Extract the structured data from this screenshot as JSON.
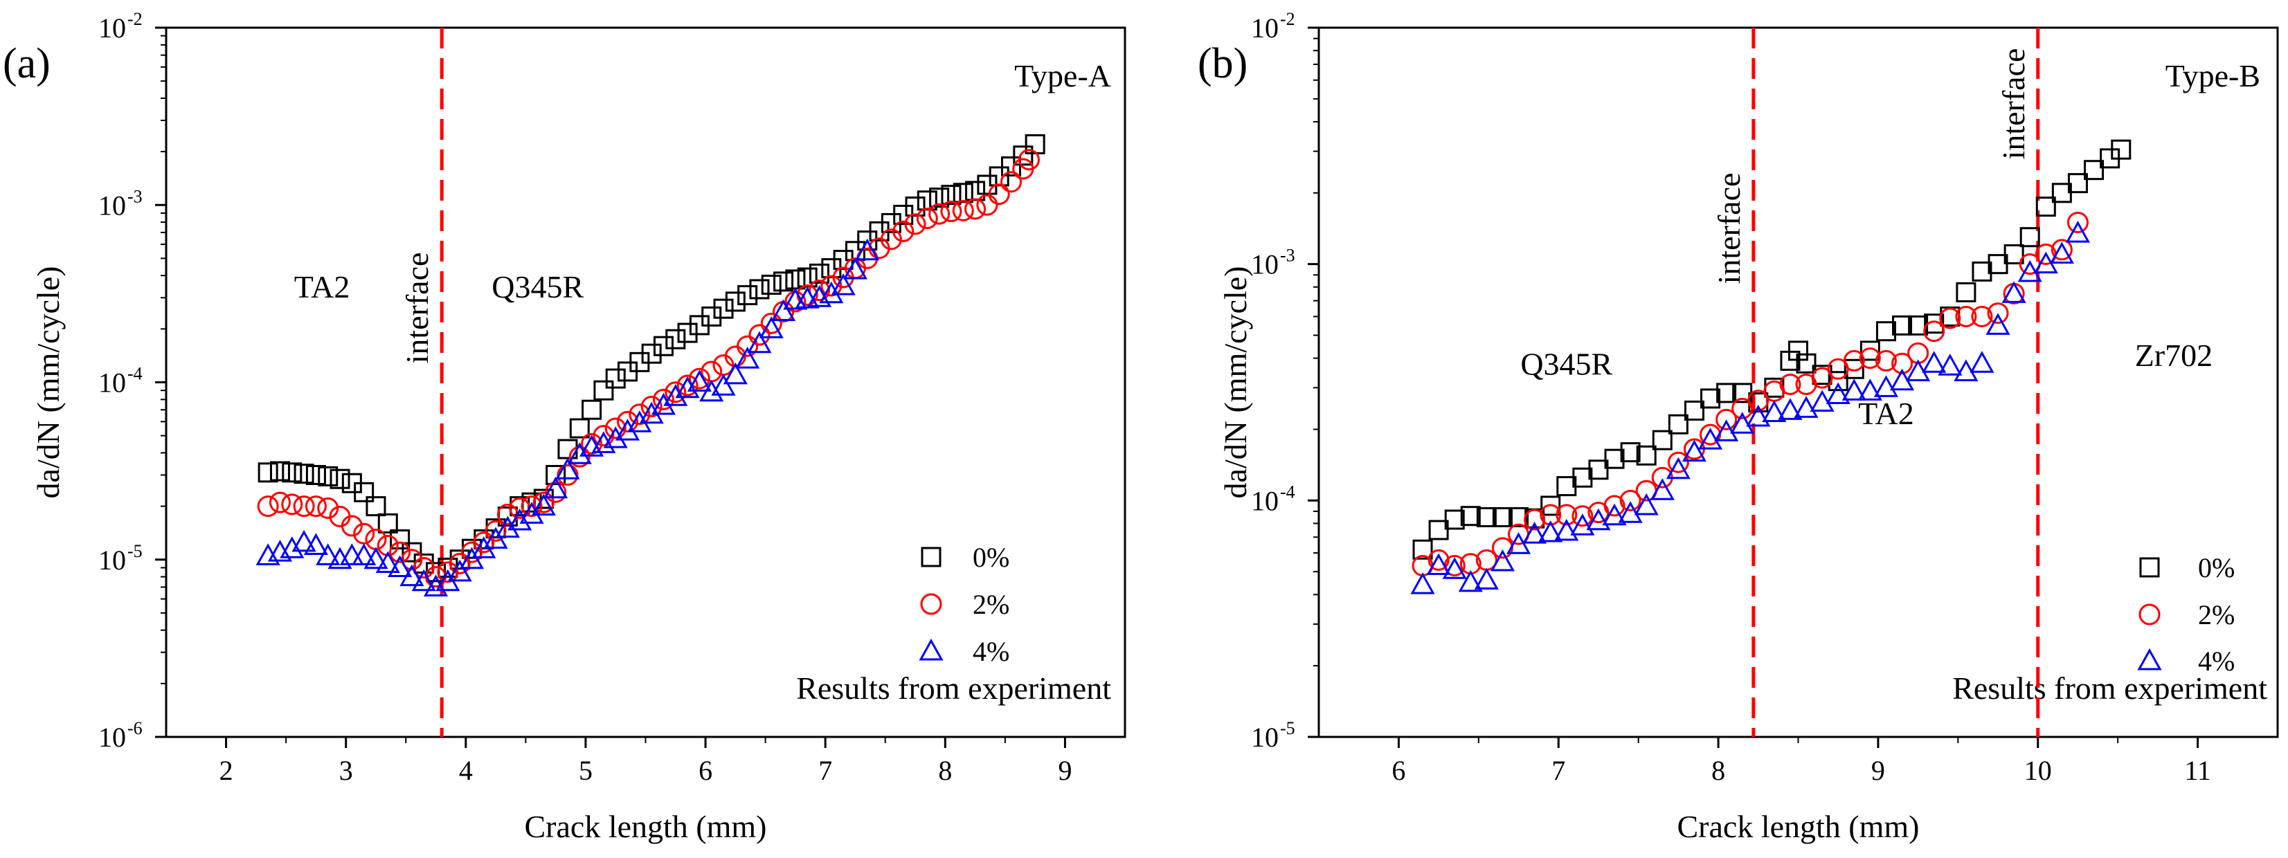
{
  "chart_data": [
    {
      "id": "a",
      "type": "scatter",
      "panel_label": "(a)",
      "title": "Type-A",
      "xlabel": "Crack length (mm)",
      "ylabel": "da/dN (mm/cycle)",
      "yscale": "log",
      "xlim": [
        1.5,
        9.5
      ],
      "ylim": [
        1e-06,
        0.01
      ],
      "xticks": [
        2,
        3,
        4,
        5,
        6,
        7,
        8,
        9
      ],
      "yticks": [
        {
          "value": 1e-06,
          "base": "10",
          "exp": "-6"
        },
        {
          "value": 1e-05,
          "base": "10",
          "exp": "-5"
        },
        {
          "value": 0.0001,
          "base": "10",
          "exp": "-4"
        },
        {
          "value": 0.001,
          "base": "10",
          "exp": "-3"
        },
        {
          "value": 0.01,
          "base": "10",
          "exp": "-2"
        }
      ],
      "note": "Results from experiment",
      "interfaces": [
        {
          "x": 3.8,
          "label": "interface"
        }
      ],
      "annotations": [
        {
          "text": "TA2",
          "x": 2.8,
          "y": 0.0003
        },
        {
          "text": "Q345R",
          "x": 4.6,
          "y": 0.0003
        }
      ],
      "series": [
        {
          "name": "0%",
          "marker": "square",
          "color": "#000000",
          "x": [
            2.35,
            2.45,
            2.55,
            2.65,
            2.75,
            2.85,
            2.95,
            3.05,
            3.15,
            3.25,
            3.35,
            3.45,
            3.55,
            3.65,
            3.75,
            3.85,
            3.95,
            4.05,
            4.15,
            4.25,
            4.35,
            4.45,
            4.55,
            4.65,
            4.75,
            4.85,
            4.95,
            5.05,
            5.15,
            5.25,
            5.35,
            5.45,
            5.55,
            5.65,
            5.75,
            5.85,
            5.95,
            6.05,
            6.15,
            6.25,
            6.35,
            6.45,
            6.55,
            6.65,
            6.75,
            6.85,
            6.95,
            7.05,
            7.15,
            7.25,
            7.35,
            7.45,
            7.55,
            7.65,
            7.75,
            7.85,
            7.95,
            8.05,
            8.15,
            8.25,
            8.35,
            8.45,
            8.55,
            8.65,
            8.75
          ],
          "y": [
            3.1e-05,
            3.15e-05,
            3.1e-05,
            3.05e-05,
            3e-05,
            2.95e-05,
            2.85e-05,
            2.7e-05,
            2.4e-05,
            2e-05,
            1.6e-05,
            1.3e-05,
            1.1e-05,
            9.5e-06,
            8.5e-06,
            9e-06,
            1e-05,
            1.15e-05,
            1.3e-05,
            1.5e-05,
            1.75e-05,
            2e-05,
            2.1e-05,
            2.2e-05,
            3e-05,
            4.2e-05,
            5.5e-05,
            7e-05,
            9e-05,
            0.000105,
            0.000115,
            0.00013,
            0.000145,
            0.00016,
            0.000175,
            0.00019,
            0.00021,
            0.000235,
            0.00026,
            0.000285,
            0.00031,
            0.000335,
            0.000355,
            0.00037,
            0.00038,
            0.00039,
            0.00041,
            0.00044,
            0.00049,
            0.00055,
            0.00063,
            0.00071,
            0.00079,
            0.00088,
            0.00098,
            0.00106,
            0.0011,
            0.00114,
            0.00117,
            0.0012,
            0.0013,
            0.00145,
            0.00165,
            0.0019,
            0.0022
          ]
        },
        {
          "name": "2%",
          "marker": "circle",
          "color": "#ff0000",
          "x": [
            2.35,
            2.45,
            2.55,
            2.65,
            2.75,
            2.85,
            2.95,
            3.05,
            3.15,
            3.25,
            3.35,
            3.45,
            3.55,
            3.65,
            3.75,
            3.85,
            3.95,
            4.05,
            4.15,
            4.25,
            4.35,
            4.45,
            4.55,
            4.65,
            4.75,
            4.85,
            4.95,
            5.05,
            5.15,
            5.25,
            5.35,
            5.45,
            5.55,
            5.65,
            5.75,
            5.85,
            5.95,
            6.05,
            6.15,
            6.25,
            6.35,
            6.45,
            6.55,
            6.65,
            6.75,
            6.85,
            6.95,
            7.05,
            7.15,
            7.25,
            7.35,
            7.45,
            7.55,
            7.65,
            7.75,
            7.85,
            7.95,
            8.05,
            8.15,
            8.25,
            8.35,
            8.45,
            8.55,
            8.65,
            8.7
          ],
          "y": [
            2e-05,
            2.1e-05,
            2.05e-05,
            2e-05,
            2e-05,
            1.95e-05,
            1.75e-05,
            1.55e-05,
            1.4e-05,
            1.3e-05,
            1.2e-05,
            1.1e-05,
            1e-05,
            9e-06,
            8e-06,
            8.5e-06,
            9.5e-06,
            1.1e-05,
            1.25e-05,
            1.45e-05,
            1.8e-05,
            1.95e-05,
            2e-05,
            2.1e-05,
            2.4e-05,
            3e-05,
            3.8e-05,
            4.5e-05,
            5e-05,
            5.5e-05,
            6e-05,
            6.6e-05,
            7.3e-05,
            8e-05,
            8.8e-05,
            9.6e-05,
            0.000105,
            0.000115,
            0.000125,
            0.00014,
            0.00016,
            0.000185,
            0.000215,
            0.00025,
            0.000285,
            0.00031,
            0.00033,
            0.00035,
            0.00039,
            0.00044,
            0.0005,
            0.00057,
            0.00064,
            0.00071,
            0.00078,
            0.00084,
            0.00089,
            0.00092,
            0.00093,
            0.00095,
            0.001,
            0.00115,
            0.00135,
            0.0016,
            0.0018
          ]
        },
        {
          "name": "4%",
          "marker": "triangle",
          "color": "#0000ff",
          "x": [
            2.35,
            2.45,
            2.55,
            2.65,
            2.75,
            2.85,
            2.95,
            3.05,
            3.15,
            3.25,
            3.35,
            3.45,
            3.55,
            3.65,
            3.75,
            3.85,
            3.95,
            4.05,
            4.15,
            4.25,
            4.35,
            4.45,
            4.55,
            4.65,
            4.75,
            4.85,
            4.95,
            5.05,
            5.15,
            5.25,
            5.35,
            5.45,
            5.55,
            5.65,
            5.75,
            5.85,
            5.95,
            6.05,
            6.15,
            6.25,
            6.35,
            6.45,
            6.55,
            6.65,
            6.75,
            6.85,
            6.95,
            7.05,
            7.15,
            7.25,
            7.35
          ],
          "y": [
            1.05e-05,
            1.1e-05,
            1.15e-05,
            1.25e-05,
            1.2e-05,
            1.05e-05,
            1e-05,
            1.05e-05,
            1.05e-05,
            1e-05,
            9.5e-06,
            9e-06,
            8e-06,
            7.5e-06,
            7e-06,
            7.5e-06,
            8.5e-06,
            1e-05,
            1.15e-05,
            1.3e-05,
            1.5e-05,
            1.65e-05,
            1.8e-05,
            2e-05,
            2.5e-05,
            3.2e-05,
            3.9e-05,
            4.3e-05,
            4.5e-05,
            4.8e-05,
            5.3e-05,
            5.9e-05,
            6.6e-05,
            7.4e-05,
            8.3e-05,
            9.2e-05,
            0.0001,
            8.8e-05,
            9.5e-05,
            0.00011,
            0.000135,
            0.000165,
            0.0002,
            0.00025,
            0.00029,
            0.000295,
            0.0003,
            0.000315,
            0.00035,
            0.00043,
            0.00055
          ]
        }
      ]
    },
    {
      "id": "b",
      "type": "scatter",
      "panel_label": "(b)",
      "title": "Type-B",
      "xlabel": "Crack length (mm)",
      "ylabel": "da/dN (mm/cycle)",
      "yscale": "log",
      "xlim": [
        5.5,
        11.5
      ],
      "ylim": [
        1e-05,
        0.01
      ],
      "xticks": [
        6,
        7,
        8,
        9,
        10,
        11
      ],
      "yticks": [
        {
          "value": 1e-05,
          "base": "10",
          "exp": "-5"
        },
        {
          "value": 0.0001,
          "base": "10",
          "exp": "-4"
        },
        {
          "value": 0.001,
          "base": "10",
          "exp": "-3"
        },
        {
          "value": 0.01,
          "base": "10",
          "exp": "-2"
        }
      ],
      "note": "Results from experiment",
      "interfaces": [
        {
          "x": 8.22,
          "label": "interface"
        },
        {
          "x": 10.0,
          "label": "interface"
        }
      ],
      "annotations": [
        {
          "text": "Q345R",
          "x": 7.05,
          "y": 0.00034
        },
        {
          "text": "TA2",
          "x": 9.05,
          "y": 0.00021
        },
        {
          "text": "Zr702",
          "x": 10.85,
          "y": 0.00037
        }
      ],
      "series": [
        {
          "name": "0%",
          "marker": "square",
          "color": "#000000",
          "x": [
            6.15,
            6.25,
            6.35,
            6.45,
            6.55,
            6.65,
            6.75,
            6.85,
            6.95,
            7.05,
            7.15,
            7.25,
            7.35,
            7.45,
            7.55,
            7.65,
            7.75,
            7.85,
            7.95,
            8.05,
            8.15,
            8.25,
            8.35,
            8.45,
            8.5,
            8.55,
            8.65,
            8.75,
            8.85,
            8.95,
            9.05,
            9.15,
            9.25,
            9.35,
            9.45,
            9.55,
            9.65,
            9.75,
            9.85,
            9.95,
            10.05,
            10.15,
            10.25,
            10.35,
            10.45,
            10.52
          ],
          "y": [
            6.2e-05,
            7.5e-05,
            8.3e-05,
            8.6e-05,
            8.5e-05,
            8.5e-05,
            8.5e-05,
            8.4e-05,
            9.5e-05,
            0.000115,
            0.000125,
            0.000135,
            0.00015,
            0.00016,
            0.000155,
            0.00018,
            0.00021,
            0.00024,
            0.00027,
            0.000285,
            0.000285,
            0.00026,
            0.0003,
            0.00039,
            0.00043,
            0.00038,
            0.00034,
            0.00032,
            0.00036,
            0.00043,
            0.00052,
            0.00055,
            0.00055,
            0.00056,
            0.0006,
            0.00076,
            0.00093,
            0.001,
            0.0011,
            0.0013,
            0.00175,
            0.002,
            0.0022,
            0.0025,
            0.0028,
            0.00305
          ]
        },
        {
          "name": "2%",
          "marker": "circle",
          "color": "#ff0000",
          "x": [
            6.15,
            6.25,
            6.35,
            6.45,
            6.55,
            6.65,
            6.75,
            6.85,
            6.95,
            7.05,
            7.15,
            7.25,
            7.35,
            7.45,
            7.55,
            7.65,
            7.75,
            7.85,
            7.95,
            8.05,
            8.15,
            8.25,
            8.35,
            8.45,
            8.55,
            8.65,
            8.75,
            8.85,
            8.95,
            9.05,
            9.15,
            9.25,
            9.35,
            9.45,
            9.55,
            9.65,
            9.75,
            9.85,
            9.95,
            10.05,
            10.15,
            10.25
          ],
          "y": [
            5.3e-05,
            5.6e-05,
            5.3e-05,
            5.4e-05,
            5.6e-05,
            6.3e-05,
            7.2e-05,
            8.3e-05,
            8.7e-05,
            8.7e-05,
            8.6e-05,
            8.9e-05,
            9.5e-05,
            0.0001,
            0.00011,
            0.000125,
            0.000145,
            0.000165,
            0.00019,
            0.00022,
            0.000245,
            0.000265,
            0.00029,
            0.00031,
            0.00031,
            0.00033,
            0.00036,
            0.00039,
            0.0004,
            0.00039,
            0.00038,
            0.00042,
            0.00052,
            0.00059,
            0.0006,
            0.0006,
            0.00062,
            0.00075,
            0.001,
            0.0011,
            0.00115,
            0.0015
          ]
        },
        {
          "name": "4%",
          "marker": "triangle",
          "color": "#0000ff",
          "x": [
            6.15,
            6.25,
            6.35,
            6.45,
            6.55,
            6.65,
            6.75,
            6.85,
            6.95,
            7.05,
            7.15,
            7.25,
            7.35,
            7.45,
            7.55,
            7.65,
            7.75,
            7.85,
            7.95,
            8.05,
            8.15,
            8.25,
            8.35,
            8.45,
            8.55,
            8.65,
            8.75,
            8.85,
            8.95,
            9.05,
            9.15,
            9.25,
            9.35,
            9.45,
            9.55,
            9.65,
            9.75,
            9.85,
            9.95,
            10.05,
            10.15,
            10.25
          ],
          "y": [
            4.4e-05,
            5.3e-05,
            5.1e-05,
            4.5e-05,
            4.6e-05,
            5.5e-05,
            6.5e-05,
            7.2e-05,
            7.3e-05,
            7.4e-05,
            7.8e-05,
            8.2e-05,
            8.6e-05,
            8.8e-05,
            9.5e-05,
            0.00011,
            0.000135,
            0.00016,
            0.00018,
            0.000195,
            0.00021,
            0.000225,
            0.000235,
            0.00024,
            0.000245,
            0.00026,
            0.00028,
            0.00029,
            0.00029,
            0.0003,
            0.00032,
            0.00035,
            0.00038,
            0.00037,
            0.00035,
            0.00038,
            0.00055,
            0.00075,
            0.00092,
            0.001,
            0.0011,
            0.00135
          ]
        }
      ]
    }
  ]
}
